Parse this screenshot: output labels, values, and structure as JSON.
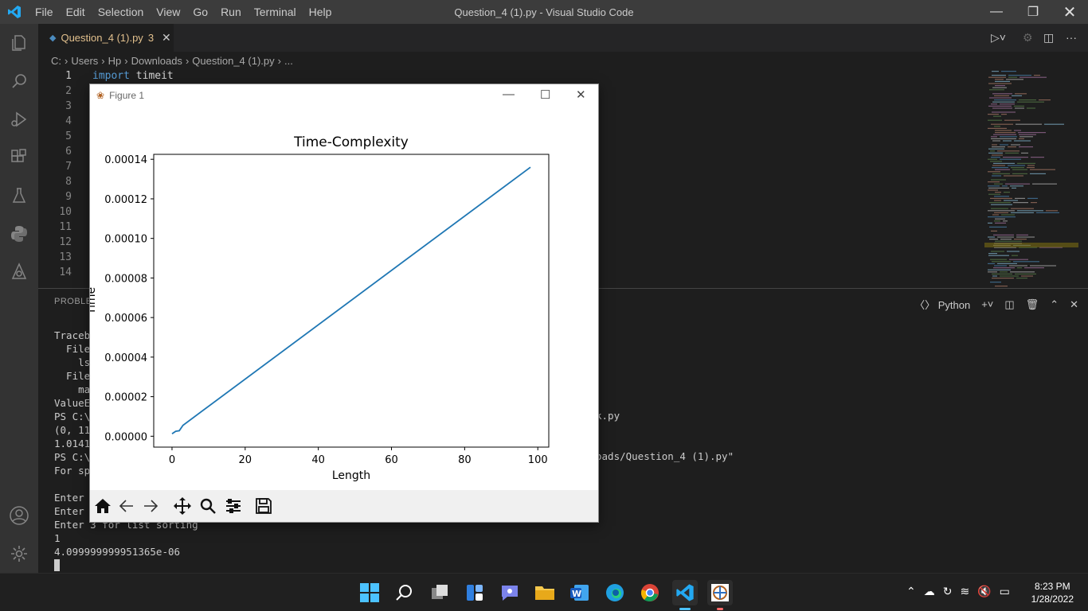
{
  "menu": [
    "File",
    "Edit",
    "Selection",
    "View",
    "Go",
    "Run",
    "Terminal",
    "Help"
  ],
  "window_title": "Question_4 (1).py - Visual Studio Code",
  "tab": {
    "name": "Question_4 (1).py",
    "problems": "3"
  },
  "breadcrumb": [
    "C:",
    "Users",
    "Hp",
    "Downloads",
    "Question_4 (1).py",
    "..."
  ],
  "editor": {
    "line_numbers": [
      "1",
      "2",
      "3",
      "4",
      "5",
      "6",
      "7",
      "8",
      "9",
      "10",
      "11",
      "12",
      "13",
      "14"
    ],
    "line1_keyword": "import",
    "line1_module": "timeit"
  },
  "panel": {
    "tab_label": "PROBLEMS",
    "shell": "Python",
    "terminal_left": [
      "Traceb",
      "  File",
      "    ls",
      "  File",
      "    ma",
      "ValueE",
      "PS C:\\",
      "(0, 11",
      "1.0141",
      "PS C:\\",
      "For sp",
      "",
      "Enter ",
      "Enter ",
      "Enter 3 for list sorting",
      "1",
      "4.099999999951365e-06"
    ],
    "terminal_right": [
      "k.py",
      "oads/Question_4 (1).py\""
    ]
  },
  "figure": {
    "title": "Figure 1"
  },
  "chart_data": {
    "type": "line",
    "title": "Time-Complexity",
    "xlabel": "Length",
    "ylabel": "Time",
    "xlim": [
      -5,
      103
    ],
    "ylim": [
      -5.5e-06,
      0.0001425
    ],
    "xticks": [
      0,
      20,
      40,
      60,
      80,
      100
    ],
    "yticks": [
      "0.00000",
      "0.00002",
      "0.00004",
      "0.00006",
      "0.00008",
      "0.00010",
      "0.00012",
      "0.00014"
    ],
    "ytick_values": [
      0,
      2e-05,
      4e-05,
      6e-05,
      8e-05,
      0.0001,
      0.00012,
      0.00014
    ],
    "series": [
      {
        "x": [
          0,
          1,
          2,
          3,
          98
        ],
        "y": [
          1.2e-06,
          2.5e-06,
          2.8e-06,
          5.5e-06,
          0.000136
        ]
      }
    ],
    "color": "#1f77b4"
  },
  "taskbar": {
    "time": "8:23 PM",
    "date": "1/28/2022"
  }
}
